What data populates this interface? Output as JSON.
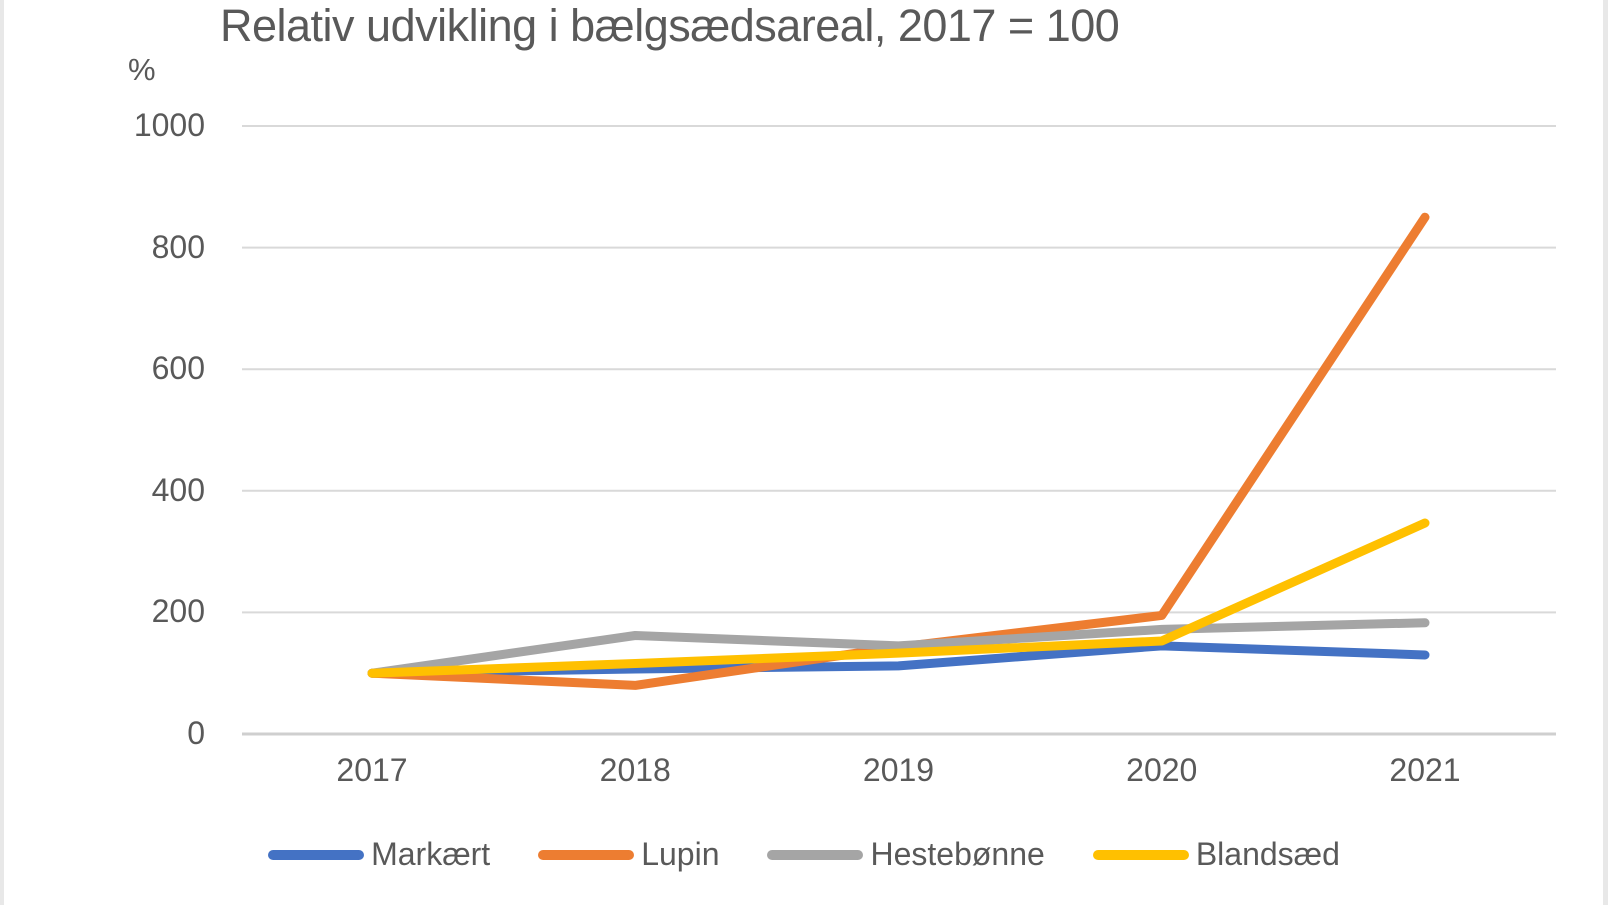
{
  "page": {
    "background": "#FFFFFF",
    "edge_strip_color": "#E8E8E8"
  },
  "chart_data": {
    "type": "line",
    "title": "Relativ udvikling i bælgsædsareal, 2017 = 100",
    "y_axis_unit_label": "%",
    "categories": [
      "2017",
      "2018",
      "2019",
      "2020",
      "2021"
    ],
    "y_ticks": [
      0,
      200,
      400,
      600,
      800,
      1000
    ],
    "ylim": [
      0,
      1000
    ],
    "grid": "horizontal",
    "gridline_color": "#D9D9D9",
    "axis_line_color": "#CFCFCF",
    "text_color": "#595959",
    "legend_position": "bottom",
    "series": [
      {
        "name": "Markært",
        "color": "#4472C4",
        "values": [
          100,
          107,
          112,
          145,
          130
        ]
      },
      {
        "name": "Lupin",
        "color": "#ED7D31",
        "values": [
          100,
          80,
          143,
          195,
          850
        ]
      },
      {
        "name": "Hestebønne",
        "color": "#A5A5A5",
        "values": [
          100,
          162,
          145,
          172,
          183
        ]
      },
      {
        "name": "Blandsæd",
        "color": "#FFC000",
        "values": [
          100,
          116,
          133,
          153,
          347
        ]
      }
    ]
  }
}
